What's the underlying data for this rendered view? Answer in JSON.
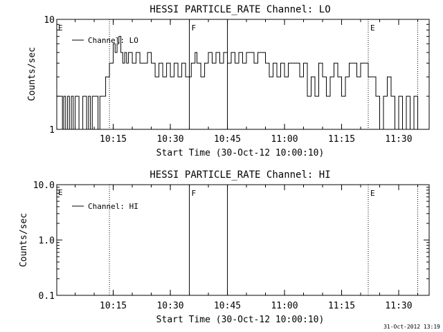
{
  "figure": {
    "footer_timestamp": "31-Oct-2012 13:19",
    "colors": {
      "background": "#ffffff",
      "foreground": "#000000"
    }
  },
  "chart_data": [
    {
      "type": "line",
      "title": "HESSI PARTICLE_RATE Channel: LO",
      "xlabel": "Start Time (30-Oct-12 10:00:10)",
      "ylabel": "Counts/sec",
      "yscale": "log",
      "xlim": [
        "10:00:10",
        "11:38:00"
      ],
      "ylim": [
        1,
        10
      ],
      "y_tick_labels": [
        "1",
        "10"
      ],
      "x_tick_labels": [
        "10:15",
        "10:30",
        "10:45",
        "11:00",
        "11:15",
        "11:30"
      ],
      "legend": {
        "placement": "top-left",
        "entries": [
          "Channel: LO"
        ]
      },
      "vlines": [
        {
          "time": "10:14:00",
          "style": "dotted",
          "label": ""
        },
        {
          "time": "10:35:00",
          "style": "solid",
          "label": "F"
        },
        {
          "time": "10:45:00",
          "style": "solid",
          "label": ""
        },
        {
          "time": "11:22:00",
          "style": "dotted",
          "label": "E"
        },
        {
          "time": "11:35:00",
          "style": "dotted",
          "label": ""
        }
      ],
      "edge_label": "E",
      "series": [
        {
          "name": "Channel: LO",
          "points": [
            [
              "10:00:10",
              2
            ],
            [
              "10:01:40",
              2
            ],
            [
              "10:01:40",
              1
            ],
            [
              "10:02:00",
              1
            ],
            [
              "10:02:00",
              2
            ],
            [
              "10:02:30",
              2
            ],
            [
              "10:02:30",
              1
            ],
            [
              "10:03:00",
              1
            ],
            [
              "10:03:00",
              2
            ],
            [
              "10:03:30",
              2
            ],
            [
              "10:03:30",
              1
            ],
            [
              "10:04:00",
              1
            ],
            [
              "10:04:00",
              2
            ],
            [
              "10:04:30",
              2
            ],
            [
              "10:04:30",
              1
            ],
            [
              "10:05:00",
              1
            ],
            [
              "10:05:00",
              2
            ],
            [
              "10:06:00",
              2
            ],
            [
              "10:06:00",
              1
            ],
            [
              "10:07:00",
              1
            ],
            [
              "10:07:00",
              2
            ],
            [
              "10:08:00",
              2
            ],
            [
              "10:08:00",
              1
            ],
            [
              "10:08:30",
              1
            ],
            [
              "10:08:30",
              2
            ],
            [
              "10:09:00",
              2
            ],
            [
              "10:09:00",
              1
            ],
            [
              "10:09:30",
              1
            ],
            [
              "10:09:30",
              2
            ],
            [
              "10:11:00",
              2
            ],
            [
              "10:11:00",
              1
            ],
            [
              "10:11:30",
              1
            ],
            [
              "10:11:30",
              2
            ],
            [
              "10:13:00",
              2
            ],
            [
              "10:13:00",
              3
            ],
            [
              "10:14:00",
              3
            ],
            [
              "10:14:00",
              4
            ],
            [
              "10:15:00",
              4
            ],
            [
              "10:15:00",
              6
            ],
            [
              "10:15:30",
              6
            ],
            [
              "10:15:30",
              5
            ],
            [
              "10:16:00",
              5
            ],
            [
              "10:16:00",
              6
            ],
            [
              "10:16:30",
              6
            ],
            [
              "10:16:30",
              7
            ],
            [
              "10:17:00",
              7
            ],
            [
              "10:17:00",
              5
            ],
            [
              "10:17:30",
              5
            ],
            [
              "10:17:30",
              4
            ],
            [
              "10:18:00",
              4
            ],
            [
              "10:18:00",
              5
            ],
            [
              "10:18:30",
              5
            ],
            [
              "10:18:30",
              4
            ],
            [
              "10:19:00",
              4
            ],
            [
              "10:19:00",
              5
            ],
            [
              "10:20:00",
              5
            ],
            [
              "10:20:00",
              4
            ],
            [
              "10:21:00",
              4
            ],
            [
              "10:21:00",
              5
            ],
            [
              "10:22:00",
              5
            ],
            [
              "10:22:00",
              4
            ],
            [
              "10:24:00",
              4
            ],
            [
              "10:24:00",
              5
            ],
            [
              "10:25:00",
              5
            ],
            [
              "10:25:00",
              4
            ],
            [
              "10:26:00",
              4
            ],
            [
              "10:26:00",
              3
            ],
            [
              "10:27:00",
              3
            ],
            [
              "10:27:00",
              4
            ],
            [
              "10:28:00",
              4
            ],
            [
              "10:28:00",
              3
            ],
            [
              "10:29:00",
              3
            ],
            [
              "10:29:00",
              4
            ],
            [
              "10:30:00",
              4
            ],
            [
              "10:30:00",
              3
            ],
            [
              "10:31:00",
              3
            ],
            [
              "10:31:00",
              4
            ],
            [
              "10:32:00",
              4
            ],
            [
              "10:32:00",
              3
            ],
            [
              "10:33:00",
              3
            ],
            [
              "10:33:00",
              4
            ],
            [
              "10:34:00",
              4
            ],
            [
              "10:34:00",
              3
            ],
            [
              "10:35:30",
              3
            ],
            [
              "10:35:30",
              4
            ],
            [
              "10:36:30",
              4
            ],
            [
              "10:36:30",
              5
            ],
            [
              "10:37:00",
              5
            ],
            [
              "10:37:00",
              4
            ],
            [
              "10:38:00",
              4
            ],
            [
              "10:38:00",
              3
            ],
            [
              "10:39:00",
              3
            ],
            [
              "10:39:00",
              4
            ],
            [
              "10:40:00",
              4
            ],
            [
              "10:40:00",
              5
            ],
            [
              "10:41:00",
              5
            ],
            [
              "10:41:00",
              4
            ],
            [
              "10:42:00",
              4
            ],
            [
              "10:42:00",
              5
            ],
            [
              "10:43:00",
              5
            ],
            [
              "10:43:00",
              4
            ],
            [
              "10:44:00",
              4
            ],
            [
              "10:44:00",
              5
            ],
            [
              "10:45:00",
              5
            ],
            [
              "10:45:00",
              4
            ],
            [
              "10:46:00",
              4
            ],
            [
              "10:46:00",
              5
            ],
            [
              "10:47:00",
              5
            ],
            [
              "10:47:00",
              4
            ],
            [
              "10:48:00",
              4
            ],
            [
              "10:48:00",
              5
            ],
            [
              "10:49:00",
              5
            ],
            [
              "10:49:00",
              4
            ],
            [
              "10:50:00",
              4
            ],
            [
              "10:50:00",
              5
            ],
            [
              "10:52:00",
              5
            ],
            [
              "10:52:00",
              4
            ],
            [
              "10:53:00",
              4
            ],
            [
              "10:53:00",
              5
            ],
            [
              "10:55:00",
              5
            ],
            [
              "10:55:00",
              4
            ],
            [
              "10:56:00",
              4
            ],
            [
              "10:56:00",
              3
            ],
            [
              "10:57:00",
              3
            ],
            [
              "10:57:00",
              4
            ],
            [
              "10:58:00",
              4
            ],
            [
              "10:58:00",
              3
            ],
            [
              "10:59:00",
              3
            ],
            [
              "10:59:00",
              4
            ],
            [
              "11:00:00",
              4
            ],
            [
              "11:00:00",
              3
            ],
            [
              "11:01:00",
              3
            ],
            [
              "11:01:00",
              4
            ],
            [
              "11:04:00",
              4
            ],
            [
              "11:04:00",
              3
            ],
            [
              "11:05:00",
              3
            ],
            [
              "11:05:00",
              4
            ],
            [
              "11:06:00",
              4
            ],
            [
              "11:06:00",
              2
            ],
            [
              "11:07:00",
              2
            ],
            [
              "11:07:00",
              3
            ],
            [
              "11:08:00",
              3
            ],
            [
              "11:08:00",
              2
            ],
            [
              "11:09:00",
              2
            ],
            [
              "11:09:00",
              4
            ],
            [
              "11:10:00",
              4
            ],
            [
              "11:10:00",
              3
            ],
            [
              "11:11:00",
              3
            ],
            [
              "11:11:00",
              2
            ],
            [
              "11:12:00",
              2
            ],
            [
              "11:12:00",
              3
            ],
            [
              "11:13:00",
              3
            ],
            [
              "11:13:00",
              4
            ],
            [
              "11:14:00",
              4
            ],
            [
              "11:14:00",
              3
            ],
            [
              "11:15:00",
              3
            ],
            [
              "11:15:00",
              2
            ],
            [
              "11:16:00",
              2
            ],
            [
              "11:16:00",
              3
            ],
            [
              "11:17:00",
              3
            ],
            [
              "11:17:00",
              4
            ],
            [
              "11:19:00",
              4
            ],
            [
              "11:19:00",
              3
            ],
            [
              "11:20:00",
              3
            ],
            [
              "11:20:00",
              4
            ],
            [
              "11:22:00",
              4
            ],
            [
              "11:22:00",
              3
            ],
            [
              "11:24:00",
              3
            ],
            [
              "11:24:00",
              2
            ],
            [
              "11:25:00",
              2
            ],
            [
              "11:25:00",
              1
            ],
            [
              "11:26:00",
              1
            ],
            [
              "11:26:00",
              2
            ],
            [
              "11:27:00",
              2
            ],
            [
              "11:27:00",
              3
            ],
            [
              "11:28:00",
              3
            ],
            [
              "11:28:00",
              2
            ],
            [
              "11:29:00",
              2
            ],
            [
              "11:29:00",
              1
            ],
            [
              "11:30:00",
              1
            ],
            [
              "11:30:00",
              2
            ],
            [
              "11:31:00",
              2
            ],
            [
              "11:31:00",
              1
            ],
            [
              "11:32:00",
              1
            ],
            [
              "11:32:00",
              2
            ],
            [
              "11:33:00",
              2
            ],
            [
              "11:33:00",
              1
            ],
            [
              "11:34:00",
              1
            ],
            [
              "11:34:00",
              2
            ],
            [
              "11:35:00",
              2
            ],
            [
              "11:35:00",
              1
            ],
            [
              "11:36:00",
              1
            ]
          ]
        }
      ]
    },
    {
      "type": "line",
      "title": "HESSI PARTICLE_RATE Channel: HI",
      "xlabel": "Start Time (30-Oct-12 10:00:10)",
      "ylabel": "Counts/sec",
      "yscale": "log",
      "xlim": [
        "10:00:10",
        "11:38:00"
      ],
      "ylim": [
        0.1,
        10
      ],
      "y_tick_labels": [
        "0.1",
        "1.0",
        "10.0"
      ],
      "x_tick_labels": [
        "10:15",
        "10:30",
        "10:45",
        "11:00",
        "11:15",
        "11:30"
      ],
      "legend": {
        "placement": "top-left",
        "entries": [
          "Channel: HI"
        ]
      },
      "vlines": [
        {
          "time": "10:14:00",
          "style": "dotted",
          "label": ""
        },
        {
          "time": "10:35:00",
          "style": "solid",
          "label": "F"
        },
        {
          "time": "10:45:00",
          "style": "solid",
          "label": ""
        },
        {
          "time": "11:22:00",
          "style": "dotted",
          "label": "E"
        },
        {
          "time": "11:35:00",
          "style": "dotted",
          "label": ""
        }
      ],
      "edge_label": "E",
      "series": [
        {
          "name": "Channel: HI",
          "points": []
        }
      ]
    }
  ]
}
